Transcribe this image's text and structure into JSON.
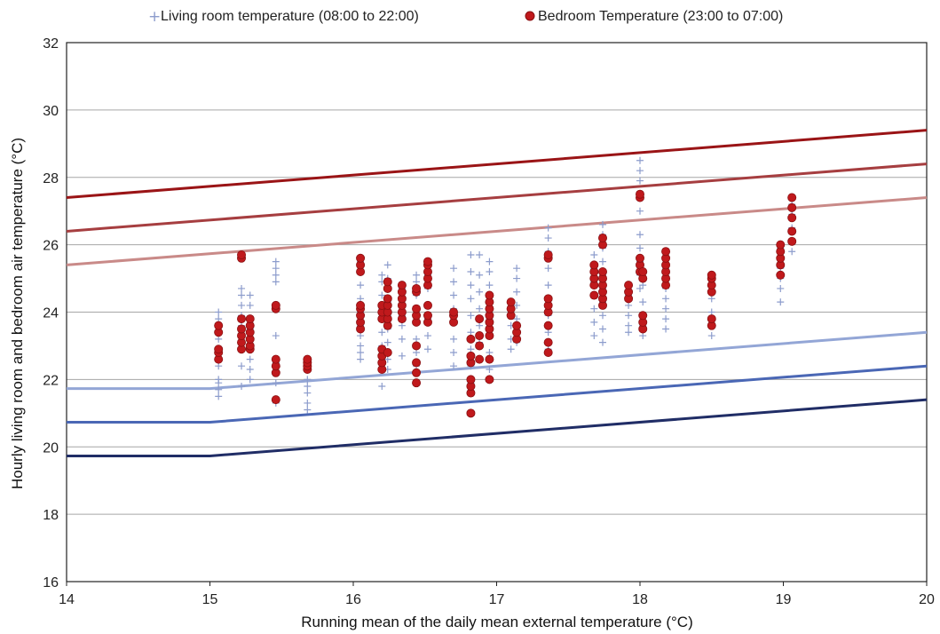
{
  "chart_data": {
    "type": "scatter",
    "xlabel": "Running mean of the daily mean external temperature (°C)",
    "ylabel": "Hourly living room and bedroom air temperature (°C)",
    "xlim": [
      14,
      20
    ],
    "ylim": [
      16,
      32
    ],
    "x_ticks": [
      "14",
      "15",
      "16",
      "17",
      "18",
      "19",
      "20"
    ],
    "y_ticks": [
      "16",
      "18",
      "20",
      "22",
      "24",
      "26",
      "28",
      "30",
      "32"
    ],
    "grid": "horizontal",
    "legend_position": "top",
    "colors": {
      "living": "#8c9ccc",
      "bedroom": "#c0191c",
      "bedroom_edge": "#8a1012"
    },
    "series": [
      {
        "name": "Living room temperature (08:00 to 22:00)",
        "marker": "plus",
        "groups": [
          {
            "x": 15.06,
            "y": [
              21.5,
              21.7,
              21.9,
              22.0,
              22.4,
              22.9,
              23.2,
              23.4,
              23.6,
              23.8,
              24.0
            ]
          },
          {
            "x": 15.22,
            "y": [
              21.8,
              22.4,
              22.9,
              23.3,
              23.6,
              23.9,
              24.2,
              24.5,
              24.7,
              25.7
            ]
          },
          {
            "x": 15.28,
            "y": [
              22.0,
              22.3,
              22.6,
              23.0,
              23.5,
              23.8,
              24.2,
              24.5
            ]
          },
          {
            "x": 15.46,
            "y": [
              21.3,
              21.4,
              21.9,
              22.5,
              23.3,
              24.2,
              24.9,
              25.1,
              25.3,
              25.5
            ]
          },
          {
            "x": 15.68,
            "y": [
              21.1,
              21.3,
              21.6,
              21.8,
              22.0,
              22.3,
              22.6
            ]
          },
          {
            "x": 16.05,
            "y": [
              22.6,
              22.8,
              23.0,
              23.3,
              23.6,
              24.0,
              24.4,
              24.8,
              25.2,
              25.5
            ]
          },
          {
            "x": 16.2,
            "y": [
              21.8,
              22.5,
              23.0,
              23.4,
              23.8,
              24.1,
              24.5,
              24.9,
              25.1
            ]
          },
          {
            "x": 16.24,
            "y": [
              22.3,
              22.6,
              23.1,
              23.5,
              23.9,
              24.3,
              24.7,
              25.0,
              25.4
            ]
          },
          {
            "x": 16.34,
            "y": [
              22.7,
              23.2,
              23.6,
              23.9,
              24.4,
              24.7
            ]
          },
          {
            "x": 16.44,
            "y": [
              22.4,
              22.8,
              23.2,
              23.7,
              24.1,
              24.5,
              24.9,
              25.1
            ]
          },
          {
            "x": 16.52,
            "y": [
              22.9,
              23.3,
              23.8,
              24.2,
              24.7,
              25.1,
              25.4
            ]
          },
          {
            "x": 16.7,
            "y": [
              22.4,
              22.8,
              23.2,
              23.7,
              24.1,
              24.5,
              24.9,
              25.3
            ]
          },
          {
            "x": 16.82,
            "y": [
              21.9,
              22.4,
              22.9,
              23.4,
              23.9,
              24.4,
              24.8,
              25.2,
              25.7
            ]
          },
          {
            "x": 16.88,
            "y": [
              22.6,
              23.1,
              23.6,
              24.1,
              24.6,
              25.1,
              25.7
            ]
          },
          {
            "x": 16.95,
            "y": [
              22.3,
              22.8,
              23.3,
              23.8,
              24.3,
              24.8,
              25.2,
              25.5
            ]
          },
          {
            "x": 17.1,
            "y": [
              22.9,
              23.2,
              23.6,
              23.9,
              24.3
            ]
          },
          {
            "x": 17.14,
            "y": [
              23.1,
              23.4,
              23.8,
              24.2,
              24.6,
              25.0,
              25.3
            ]
          },
          {
            "x": 17.36,
            "y": [
              22.9,
              23.4,
              23.9,
              24.4,
              24.8,
              25.3,
              25.8,
              26.2,
              26.5
            ]
          },
          {
            "x": 17.68,
            "y": [
              23.3,
              23.7,
              24.1,
              24.5,
              24.9,
              25.3,
              25.7
            ]
          },
          {
            "x": 17.74,
            "y": [
              23.1,
              23.5,
              23.9,
              24.3,
              24.7,
              25.1,
              25.5,
              25.9,
              26.3,
              26.6
            ]
          },
          {
            "x": 17.92,
            "y": [
              23.4,
              23.6,
              23.9,
              24.2,
              24.5,
              24.8
            ]
          },
          {
            "x": 18.0,
            "y": [
              24.7,
              25.1,
              25.5,
              25.9,
              26.3,
              27.0,
              27.5,
              27.9,
              28.2,
              28.5
            ]
          },
          {
            "x": 18.02,
            "y": [
              23.3,
              23.6,
              23.9,
              24.3,
              24.8
            ]
          },
          {
            "x": 18.18,
            "y": [
              23.5,
              23.8,
              24.1,
              24.4,
              24.7,
              25.0,
              25.3,
              25.6
            ]
          },
          {
            "x": 18.5,
            "y": [
              23.3,
              23.6,
              24.0,
              24.4,
              24.8,
              25.1
            ]
          },
          {
            "x": 18.98,
            "y": [
              24.3,
              24.7,
              25.0,
              25.3,
              25.6,
              25.9
            ]
          },
          {
            "x": 19.06,
            "y": [
              25.8,
              26.1,
              26.5,
              26.9,
              27.2
            ]
          }
        ]
      },
      {
        "name": "Bedroom Temperature (23:00 to 07:00)",
        "marker": "circle",
        "groups": [
          {
            "x": 15.06,
            "y": [
              22.6,
              22.8,
              22.9,
              23.4,
              23.6
            ]
          },
          {
            "x": 15.22,
            "y": [
              22.9,
              23.1,
              23.3,
              23.5,
              23.8,
              25.6,
              25.7
            ]
          },
          {
            "x": 15.28,
            "y": [
              22.9,
              23.0,
              23.2,
              23.4,
              23.6,
              23.8
            ]
          },
          {
            "x": 15.46,
            "y": [
              21.4,
              22.2,
              22.4,
              22.6,
              24.1,
              24.2
            ]
          },
          {
            "x": 15.68,
            "y": [
              22.3,
              22.4,
              22.5,
              22.6
            ]
          },
          {
            "x": 16.05,
            "y": [
              23.5,
              23.7,
              23.9,
              24.1,
              24.2,
              25.2,
              25.4,
              25.6
            ]
          },
          {
            "x": 16.2,
            "y": [
              22.3,
              22.5,
              22.7,
              22.9,
              23.8,
              24.0,
              24.2
            ]
          },
          {
            "x": 16.24,
            "y": [
              22.8,
              23.6,
              23.8,
              24.0,
              24.2,
              24.4,
              24.7,
              24.9
            ]
          },
          {
            "x": 16.34,
            "y": [
              23.8,
              24.0,
              24.2,
              24.4,
              24.6,
              24.8
            ]
          },
          {
            "x": 16.44,
            "y": [
              21.9,
              22.2,
              22.5,
              23.0,
              23.7,
              23.9,
              24.1,
              24.6,
              24.7
            ]
          },
          {
            "x": 16.52,
            "y": [
              23.7,
              23.9,
              24.2,
              24.8,
              25.0,
              25.2,
              25.4,
              25.5
            ]
          },
          {
            "x": 16.7,
            "y": [
              23.7,
              23.9,
              24.0
            ]
          },
          {
            "x": 16.82,
            "y": [
              21.0,
              21.6,
              21.8,
              22.0,
              22.5,
              22.7,
              23.2
            ]
          },
          {
            "x": 16.88,
            "y": [
              22.6,
              23.0,
              23.3,
              23.8
            ]
          },
          {
            "x": 16.95,
            "y": [
              22.0,
              22.6,
              23.3,
              23.5,
              23.7,
              23.9,
              24.1,
              24.3,
              24.5
            ]
          },
          {
            "x": 17.1,
            "y": [
              23.9,
              24.1,
              24.3
            ]
          },
          {
            "x": 17.14,
            "y": [
              23.2,
              23.4,
              23.6
            ]
          },
          {
            "x": 17.36,
            "y": [
              22.8,
              23.1,
              23.6,
              24.0,
              24.2,
              24.4,
              25.6,
              25.7
            ]
          },
          {
            "x": 17.68,
            "y": [
              24.5,
              24.8,
              25.0,
              25.2,
              25.4
            ]
          },
          {
            "x": 17.74,
            "y": [
              24.2,
              24.4,
              24.6,
              24.8,
              25.0,
              25.2,
              26.0,
              26.2
            ]
          },
          {
            "x": 17.92,
            "y": [
              24.4,
              24.6,
              24.8
            ]
          },
          {
            "x": 18.0,
            "y": [
              25.2,
              25.4,
              25.6,
              27.4,
              27.5
            ]
          },
          {
            "x": 18.02,
            "y": [
              23.5,
              23.7,
              23.9,
              25.0,
              25.2
            ]
          },
          {
            "x": 18.18,
            "y": [
              24.8,
              25.0,
              25.2,
              25.4,
              25.6,
              25.8
            ]
          },
          {
            "x": 18.5,
            "y": [
              23.6,
              23.8,
              24.6,
              24.8,
              25.0,
              25.1
            ]
          },
          {
            "x": 18.98,
            "y": [
              25.1,
              25.4,
              25.6,
              25.8,
              26.0
            ]
          },
          {
            "x": 19.06,
            "y": [
              26.1,
              26.4,
              26.8,
              27.1,
              27.4
            ]
          }
        ]
      }
    ],
    "reference_lines": [
      {
        "color": "#9a1416",
        "points": [
          [
            14,
            27.4
          ],
          [
            20,
            29.4
          ]
        ]
      },
      {
        "color": "#a63e40",
        "points": [
          [
            14,
            26.4
          ],
          [
            20,
            28.4
          ]
        ]
      },
      {
        "color": "#c98a88",
        "points": [
          [
            14,
            25.4
          ],
          [
            20,
            27.4
          ]
        ]
      },
      {
        "color": "#93a6d6",
        "points": [
          [
            14,
            21.73
          ],
          [
            15,
            21.73
          ],
          [
            20,
            23.4
          ]
        ]
      },
      {
        "color": "#4a67b5",
        "points": [
          [
            14,
            20.73
          ],
          [
            15,
            20.73
          ],
          [
            20,
            22.4
          ]
        ]
      },
      {
        "color": "#202d66",
        "points": [
          [
            14,
            19.73
          ],
          [
            15,
            19.73
          ],
          [
            20,
            21.4
          ]
        ]
      }
    ]
  }
}
